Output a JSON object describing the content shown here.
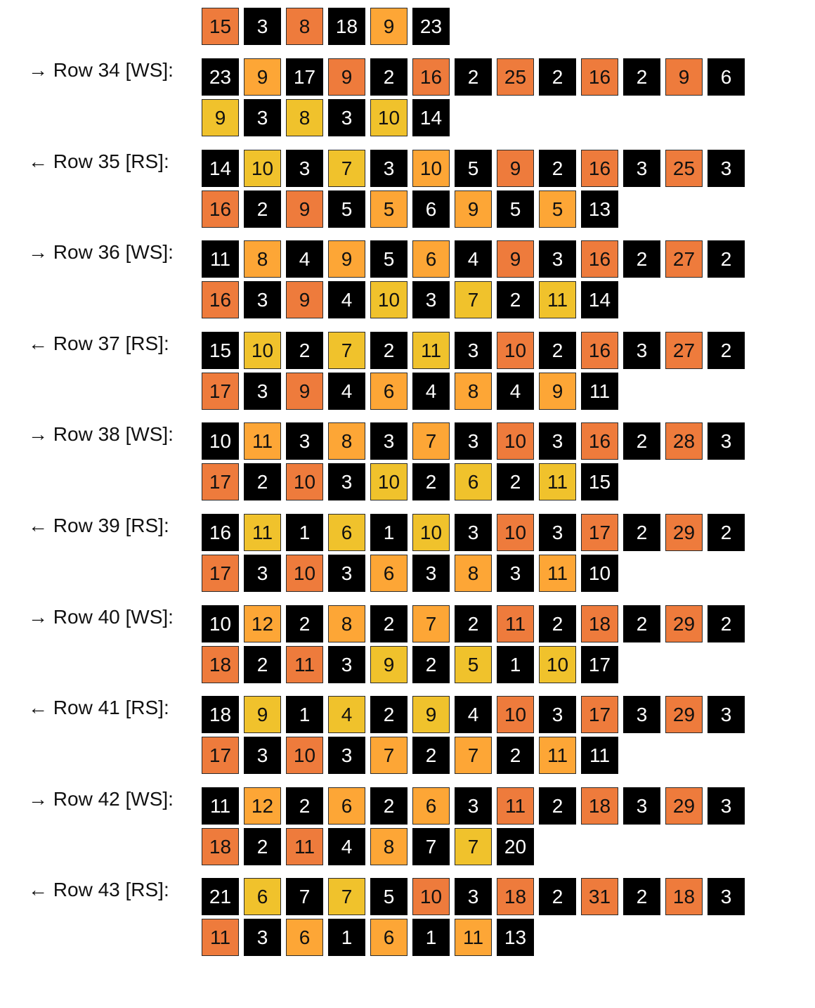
{
  "colors": {
    "black": "#000000",
    "orange": "#fda636",
    "dark_orange": "#ee7b3c",
    "yellow": "#f0c22c"
  },
  "top_partial_row": {
    "cells": [
      {
        "v": "15",
        "c": "dark_orange"
      },
      {
        "v": "3",
        "c": "black"
      },
      {
        "v": "8",
        "c": "dark_orange"
      },
      {
        "v": "18",
        "c": "black"
      },
      {
        "v": "9",
        "c": "orange"
      },
      {
        "v": "23",
        "c": "black"
      }
    ]
  },
  "rows": [
    {
      "label": "→ Row 34 [WS]:",
      "line1": [
        {
          "v": "23",
          "c": "black"
        },
        {
          "v": "9",
          "c": "orange"
        },
        {
          "v": "17",
          "c": "black"
        },
        {
          "v": "9",
          "c": "dark_orange"
        },
        {
          "v": "2",
          "c": "black"
        },
        {
          "v": "16",
          "c": "dark_orange"
        },
        {
          "v": "2",
          "c": "black"
        },
        {
          "v": "25",
          "c": "dark_orange"
        },
        {
          "v": "2",
          "c": "black"
        },
        {
          "v": "16",
          "c": "dark_orange"
        },
        {
          "v": "2",
          "c": "black"
        },
        {
          "v": "9",
          "c": "dark_orange"
        },
        {
          "v": "6",
          "c": "black"
        }
      ],
      "line2": [
        {
          "v": "9",
          "c": "yellow"
        },
        {
          "v": "3",
          "c": "black"
        },
        {
          "v": "8",
          "c": "yellow"
        },
        {
          "v": "3",
          "c": "black"
        },
        {
          "v": "10",
          "c": "yellow"
        },
        {
          "v": "14",
          "c": "black"
        }
      ]
    },
    {
      "label": "← Row 35 [RS]:",
      "line1": [
        {
          "v": "14",
          "c": "black"
        },
        {
          "v": "10",
          "c": "yellow"
        },
        {
          "v": "3",
          "c": "black"
        },
        {
          "v": "7",
          "c": "yellow"
        },
        {
          "v": "3",
          "c": "black"
        },
        {
          "v": "10",
          "c": "orange"
        },
        {
          "v": "5",
          "c": "black"
        },
        {
          "v": "9",
          "c": "dark_orange"
        },
        {
          "v": "2",
          "c": "black"
        },
        {
          "v": "16",
          "c": "dark_orange"
        },
        {
          "v": "3",
          "c": "black"
        },
        {
          "v": "25",
          "c": "dark_orange"
        },
        {
          "v": "3",
          "c": "black"
        }
      ],
      "line2": [
        {
          "v": "16",
          "c": "dark_orange"
        },
        {
          "v": "2",
          "c": "black"
        },
        {
          "v": "9",
          "c": "dark_orange"
        },
        {
          "v": "5",
          "c": "black"
        },
        {
          "v": "5",
          "c": "orange"
        },
        {
          "v": "6",
          "c": "black"
        },
        {
          "v": "9",
          "c": "orange"
        },
        {
          "v": "5",
          "c": "black"
        },
        {
          "v": "5",
          "c": "orange"
        },
        {
          "v": "13",
          "c": "black"
        }
      ]
    },
    {
      "label": "→ Row 36 [WS]:",
      "line1": [
        {
          "v": "11",
          "c": "black"
        },
        {
          "v": "8",
          "c": "orange"
        },
        {
          "v": "4",
          "c": "black"
        },
        {
          "v": "9",
          "c": "orange"
        },
        {
          "v": "5",
          "c": "black"
        },
        {
          "v": "6",
          "c": "orange"
        },
        {
          "v": "4",
          "c": "black"
        },
        {
          "v": "9",
          "c": "dark_orange"
        },
        {
          "v": "3",
          "c": "black"
        },
        {
          "v": "16",
          "c": "dark_orange"
        },
        {
          "v": "2",
          "c": "black"
        },
        {
          "v": "27",
          "c": "dark_orange"
        },
        {
          "v": "2",
          "c": "black"
        }
      ],
      "line2": [
        {
          "v": "16",
          "c": "dark_orange"
        },
        {
          "v": "3",
          "c": "black"
        },
        {
          "v": "9",
          "c": "dark_orange"
        },
        {
          "v": "4",
          "c": "black"
        },
        {
          "v": "10",
          "c": "yellow"
        },
        {
          "v": "3",
          "c": "black"
        },
        {
          "v": "7",
          "c": "yellow"
        },
        {
          "v": "2",
          "c": "black"
        },
        {
          "v": "11",
          "c": "yellow"
        },
        {
          "v": "14",
          "c": "black"
        }
      ]
    },
    {
      "label": "← Row 37 [RS]:",
      "line1": [
        {
          "v": "15",
          "c": "black"
        },
        {
          "v": "10",
          "c": "yellow"
        },
        {
          "v": "2",
          "c": "black"
        },
        {
          "v": "7",
          "c": "yellow"
        },
        {
          "v": "2",
          "c": "black"
        },
        {
          "v": "11",
          "c": "yellow"
        },
        {
          "v": "3",
          "c": "black"
        },
        {
          "v": "10",
          "c": "dark_orange"
        },
        {
          "v": "2",
          "c": "black"
        },
        {
          "v": "16",
          "c": "dark_orange"
        },
        {
          "v": "3",
          "c": "black"
        },
        {
          "v": "27",
          "c": "dark_orange"
        },
        {
          "v": "2",
          "c": "black"
        }
      ],
      "line2": [
        {
          "v": "17",
          "c": "dark_orange"
        },
        {
          "v": "3",
          "c": "black"
        },
        {
          "v": "9",
          "c": "dark_orange"
        },
        {
          "v": "4",
          "c": "black"
        },
        {
          "v": "6",
          "c": "orange"
        },
        {
          "v": "4",
          "c": "black"
        },
        {
          "v": "8",
          "c": "orange"
        },
        {
          "v": "4",
          "c": "black"
        },
        {
          "v": "9",
          "c": "orange"
        },
        {
          "v": "11",
          "c": "black"
        }
      ]
    },
    {
      "label": "→ Row 38 [WS]:",
      "line1": [
        {
          "v": "10",
          "c": "black"
        },
        {
          "v": "11",
          "c": "orange"
        },
        {
          "v": "3",
          "c": "black"
        },
        {
          "v": "8",
          "c": "orange"
        },
        {
          "v": "3",
          "c": "black"
        },
        {
          "v": "7",
          "c": "orange"
        },
        {
          "v": "3",
          "c": "black"
        },
        {
          "v": "10",
          "c": "dark_orange"
        },
        {
          "v": "3",
          "c": "black"
        },
        {
          "v": "16",
          "c": "dark_orange"
        },
        {
          "v": "2",
          "c": "black"
        },
        {
          "v": "28",
          "c": "dark_orange"
        },
        {
          "v": "3",
          "c": "black"
        }
      ],
      "line2": [
        {
          "v": "17",
          "c": "dark_orange"
        },
        {
          "v": "2",
          "c": "black"
        },
        {
          "v": "10",
          "c": "dark_orange"
        },
        {
          "v": "3",
          "c": "black"
        },
        {
          "v": "10",
          "c": "yellow"
        },
        {
          "v": "2",
          "c": "black"
        },
        {
          "v": "6",
          "c": "yellow"
        },
        {
          "v": "2",
          "c": "black"
        },
        {
          "v": "11",
          "c": "yellow"
        },
        {
          "v": "15",
          "c": "black"
        }
      ]
    },
    {
      "label": "← Row 39 [RS]:",
      "line1": [
        {
          "v": "16",
          "c": "black"
        },
        {
          "v": "11",
          "c": "yellow"
        },
        {
          "v": "1",
          "c": "black"
        },
        {
          "v": "6",
          "c": "yellow"
        },
        {
          "v": "1",
          "c": "black"
        },
        {
          "v": "10",
          "c": "yellow"
        },
        {
          "v": "3",
          "c": "black"
        },
        {
          "v": "10",
          "c": "dark_orange"
        },
        {
          "v": "3",
          "c": "black"
        },
        {
          "v": "17",
          "c": "dark_orange"
        },
        {
          "v": "2",
          "c": "black"
        },
        {
          "v": "29",
          "c": "dark_orange"
        },
        {
          "v": "2",
          "c": "black"
        }
      ],
      "line2": [
        {
          "v": "17",
          "c": "dark_orange"
        },
        {
          "v": "3",
          "c": "black"
        },
        {
          "v": "10",
          "c": "dark_orange"
        },
        {
          "v": "3",
          "c": "black"
        },
        {
          "v": "6",
          "c": "orange"
        },
        {
          "v": "3",
          "c": "black"
        },
        {
          "v": "8",
          "c": "orange"
        },
        {
          "v": "3",
          "c": "black"
        },
        {
          "v": "11",
          "c": "orange"
        },
        {
          "v": "10",
          "c": "black"
        }
      ]
    },
    {
      "label": "→ Row 40 [WS]:",
      "line1": [
        {
          "v": "10",
          "c": "black"
        },
        {
          "v": "12",
          "c": "orange"
        },
        {
          "v": "2",
          "c": "black"
        },
        {
          "v": "8",
          "c": "orange"
        },
        {
          "v": "2",
          "c": "black"
        },
        {
          "v": "7",
          "c": "orange"
        },
        {
          "v": "2",
          "c": "black"
        },
        {
          "v": "11",
          "c": "dark_orange"
        },
        {
          "v": "2",
          "c": "black"
        },
        {
          "v": "18",
          "c": "dark_orange"
        },
        {
          "v": "2",
          "c": "black"
        },
        {
          "v": "29",
          "c": "dark_orange"
        },
        {
          "v": "2",
          "c": "black"
        }
      ],
      "line2": [
        {
          "v": "18",
          "c": "dark_orange"
        },
        {
          "v": "2",
          "c": "black"
        },
        {
          "v": "11",
          "c": "dark_orange"
        },
        {
          "v": "3",
          "c": "black"
        },
        {
          "v": "9",
          "c": "yellow"
        },
        {
          "v": "2",
          "c": "black"
        },
        {
          "v": "5",
          "c": "yellow"
        },
        {
          "v": "1",
          "c": "black"
        },
        {
          "v": "10",
          "c": "yellow"
        },
        {
          "v": "17",
          "c": "black"
        }
      ]
    },
    {
      "label": "← Row 41 [RS]:",
      "line1": [
        {
          "v": "18",
          "c": "black"
        },
        {
          "v": "9",
          "c": "yellow"
        },
        {
          "v": "1",
          "c": "black"
        },
        {
          "v": "4",
          "c": "yellow"
        },
        {
          "v": "2",
          "c": "black"
        },
        {
          "v": "9",
          "c": "yellow"
        },
        {
          "v": "4",
          "c": "black"
        },
        {
          "v": "10",
          "c": "dark_orange"
        },
        {
          "v": "3",
          "c": "black"
        },
        {
          "v": "17",
          "c": "dark_orange"
        },
        {
          "v": "3",
          "c": "black"
        },
        {
          "v": "29",
          "c": "dark_orange"
        },
        {
          "v": "3",
          "c": "black"
        }
      ],
      "line2": [
        {
          "v": "17",
          "c": "dark_orange"
        },
        {
          "v": "3",
          "c": "black"
        },
        {
          "v": "10",
          "c": "dark_orange"
        },
        {
          "v": "3",
          "c": "black"
        },
        {
          "v": "7",
          "c": "orange"
        },
        {
          "v": "2",
          "c": "black"
        },
        {
          "v": "7",
          "c": "orange"
        },
        {
          "v": "2",
          "c": "black"
        },
        {
          "v": "11",
          "c": "orange"
        },
        {
          "v": "11",
          "c": "black"
        }
      ]
    },
    {
      "label": "→ Row 42 [WS]:",
      "line1": [
        {
          "v": "11",
          "c": "black"
        },
        {
          "v": "12",
          "c": "orange"
        },
        {
          "v": "2",
          "c": "black"
        },
        {
          "v": "6",
          "c": "orange"
        },
        {
          "v": "2",
          "c": "black"
        },
        {
          "v": "6",
          "c": "orange"
        },
        {
          "v": "3",
          "c": "black"
        },
        {
          "v": "11",
          "c": "dark_orange"
        },
        {
          "v": "2",
          "c": "black"
        },
        {
          "v": "18",
          "c": "dark_orange"
        },
        {
          "v": "3",
          "c": "black"
        },
        {
          "v": "29",
          "c": "dark_orange"
        },
        {
          "v": "3",
          "c": "black"
        }
      ],
      "line2": [
        {
          "v": "18",
          "c": "dark_orange"
        },
        {
          "v": "2",
          "c": "black"
        },
        {
          "v": "11",
          "c": "dark_orange"
        },
        {
          "v": "4",
          "c": "black"
        },
        {
          "v": "8",
          "c": "orange"
        },
        {
          "v": "7",
          "c": "black"
        },
        {
          "v": "7",
          "c": "yellow"
        },
        {
          "v": "20",
          "c": "black"
        }
      ]
    },
    {
      "label": "← Row 43 [RS]:",
      "line1": [
        {
          "v": "21",
          "c": "black"
        },
        {
          "v": "6",
          "c": "yellow"
        },
        {
          "v": "7",
          "c": "black"
        },
        {
          "v": "7",
          "c": "yellow"
        },
        {
          "v": "5",
          "c": "black"
        },
        {
          "v": "10",
          "c": "dark_orange"
        },
        {
          "v": "3",
          "c": "black"
        },
        {
          "v": "18",
          "c": "dark_orange"
        },
        {
          "v": "2",
          "c": "black"
        },
        {
          "v": "31",
          "c": "dark_orange"
        },
        {
          "v": "2",
          "c": "black"
        },
        {
          "v": "18",
          "c": "dark_orange"
        },
        {
          "v": "3",
          "c": "black"
        }
      ],
      "line2": [
        {
          "v": "11",
          "c": "dark_orange"
        },
        {
          "v": "3",
          "c": "black"
        },
        {
          "v": "6",
          "c": "orange"
        },
        {
          "v": "1",
          "c": "black"
        },
        {
          "v": "6",
          "c": "orange"
        },
        {
          "v": "1",
          "c": "black"
        },
        {
          "v": "11",
          "c": "orange"
        },
        {
          "v": "13",
          "c": "black"
        }
      ]
    }
  ]
}
